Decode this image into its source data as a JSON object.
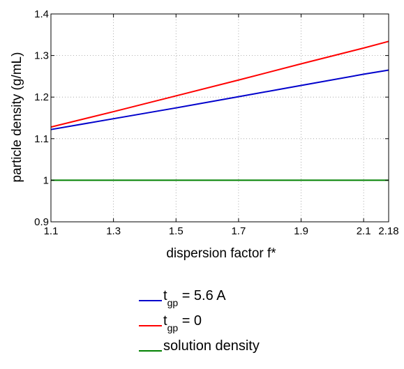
{
  "chart_data": {
    "type": "line",
    "title": "",
    "xlabel": "dispersion factor f*",
    "ylabel": "particle density (g/mL)",
    "xlim": [
      1.1,
      2.18
    ],
    "ylim": [
      0.9,
      1.4
    ],
    "xticks": [
      1.1,
      1.3,
      1.5,
      1.7,
      1.9,
      2.1,
      2.18
    ],
    "xtick_labels": [
      "1.1",
      "1.3",
      "1.5",
      "1.7",
      "1.9",
      "2.1",
      "2.18"
    ],
    "yticks": [
      0.9,
      1,
      1.1,
      1.2,
      1.3,
      1.4
    ],
    "ytick_labels": [
      "0.9",
      "1",
      "1.1",
      "1.2",
      "1.3",
      "1.4"
    ],
    "grid": true,
    "legend_position": "below",
    "series": [
      {
        "legend_main": "t",
        "legend_sub": "gp",
        "legend_rest": " = 5.6 A",
        "color": "#0000cc",
        "x": [
          1.1,
          1.3,
          1.5,
          1.7,
          1.9,
          2.1,
          2.18
        ],
        "y": [
          1.122,
          1.148,
          1.174,
          1.201,
          1.228,
          1.255,
          1.265
        ]
      },
      {
        "legend_main": "t",
        "legend_sub": "gp",
        "legend_rest": " = 0",
        "color": "#ff0000",
        "x": [
          1.1,
          1.3,
          1.5,
          1.7,
          1.9,
          2.1,
          2.18
        ],
        "y": [
          1.128,
          1.165,
          1.203,
          1.241,
          1.28,
          1.318,
          1.334
        ]
      },
      {
        "legend_main": "solution density",
        "legend_sub": "",
        "legend_rest": "",
        "color": "#008000",
        "x": [
          1.1,
          2.18
        ],
        "y": [
          1.0,
          1.0
        ]
      }
    ]
  }
}
